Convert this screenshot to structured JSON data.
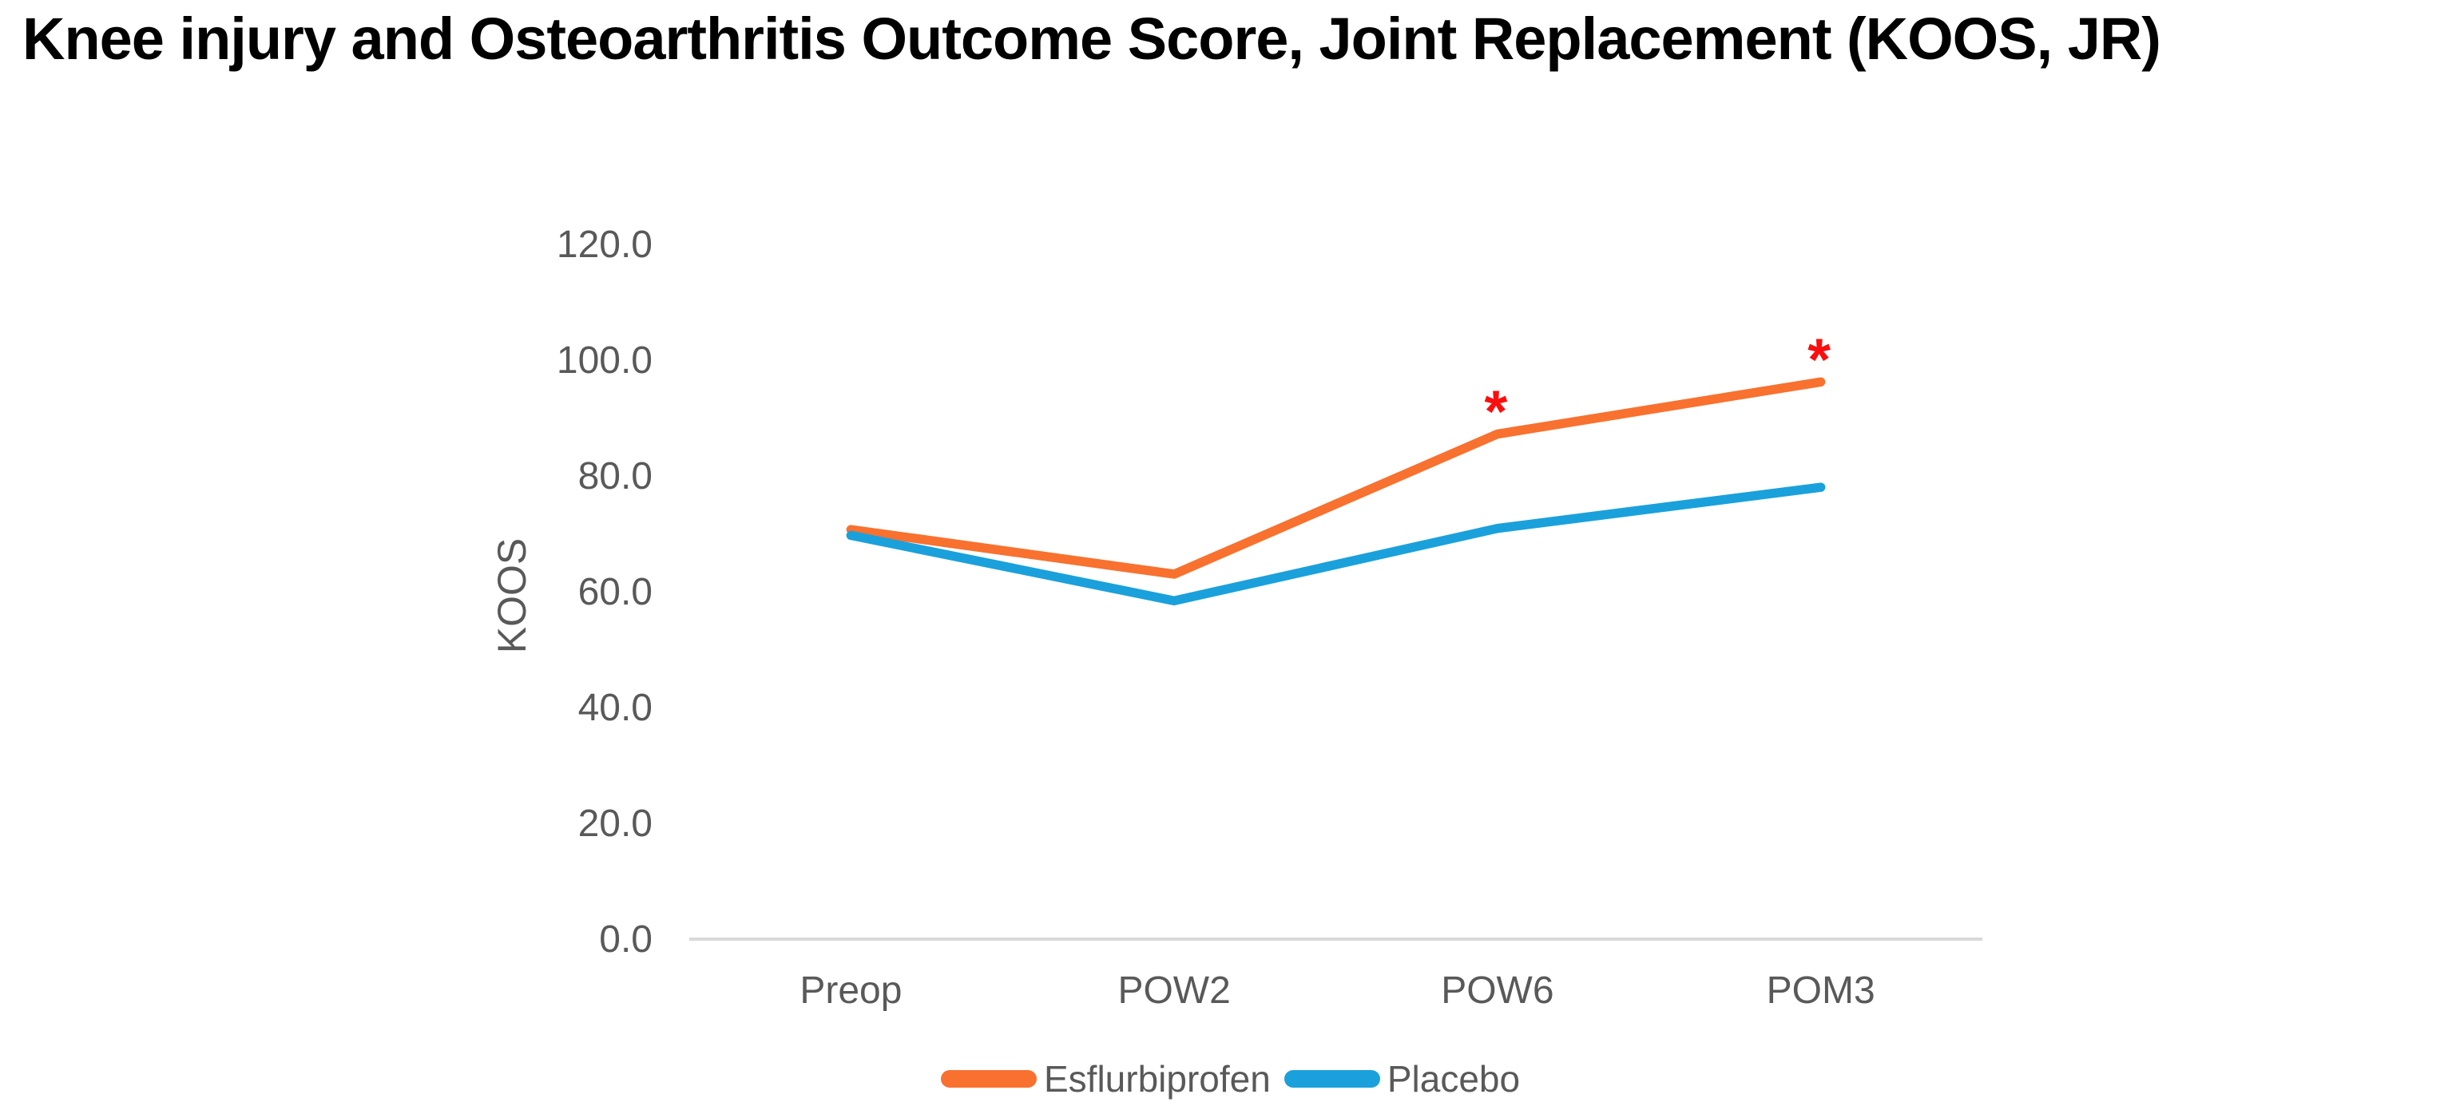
{
  "chart_data": {
    "type": "line",
    "title": "Knee injury and Osteoarthritis Outcome Score, Joint Replacement (KOOS, JR)",
    "categories": [
      "Preop",
      "POW2",
      "POW6",
      "POM3"
    ],
    "series": [
      {
        "name": "Esflurbiprofen",
        "color": "#F8712F",
        "values": [
          70.6,
          62.9,
          87.1,
          96.1
        ]
      },
      {
        "name": "Placebo",
        "color": "#1AA1DB",
        "values": [
          69.6,
          58.3,
          70.8,
          77.9
        ]
      }
    ],
    "annotations": [
      {
        "text": "*",
        "color": "#FA0F0F",
        "series": "Esflurbiprofen",
        "category": "POW6"
      },
      {
        "text": "*",
        "color": "#FA0F0F",
        "series": "Esflurbiprofen",
        "category": "POM3"
      }
    ],
    "xlabel": "",
    "ylabel": "KOOS",
    "ylim": [
      0,
      120
    ],
    "ytick_step": 20,
    "ytick_labels": [
      "0.0",
      "20.0",
      "40.0",
      "60.0",
      "80.0",
      "100.0",
      "120.0"
    ],
    "grid": false,
    "legend_position": "bottom",
    "axis_line_color": "#D9D9D9",
    "label_color": "#595959",
    "title_color": "#000000",
    "background_color": "#FFFFFF"
  }
}
